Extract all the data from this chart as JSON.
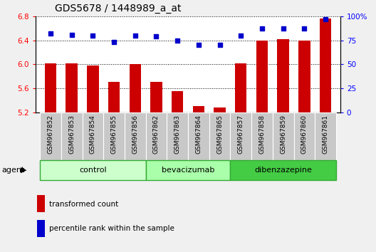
{
  "title": "GDS5678 / 1448989_a_at",
  "samples": [
    "GSM967852",
    "GSM967853",
    "GSM967854",
    "GSM967855",
    "GSM967856",
    "GSM967862",
    "GSM967863",
    "GSM967864",
    "GSM967865",
    "GSM967857",
    "GSM967858",
    "GSM967859",
    "GSM967860",
    "GSM967861"
  ],
  "bar_values": [
    6.02,
    6.02,
    5.98,
    5.7,
    6.0,
    5.7,
    5.55,
    5.3,
    5.28,
    6.02,
    6.4,
    6.42,
    6.4,
    6.77
  ],
  "percentile_values": [
    82,
    81,
    80,
    73,
    80,
    79,
    75,
    70,
    70,
    80,
    87,
    87,
    87,
    97
  ],
  "bar_color": "#cc0000",
  "dot_color": "#0000cc",
  "ylim_left": [
    5.2,
    6.8
  ],
  "ylim_right": [
    0,
    100
  ],
  "yticks_left": [
    5.2,
    5.6,
    6.0,
    6.4,
    6.8
  ],
  "yticks_right": [
    0,
    25,
    50,
    75,
    100
  ],
  "groups": [
    {
      "label": "control",
      "start": 0,
      "end": 5,
      "color": "#ccffcc"
    },
    {
      "label": "bevacizumab",
      "start": 5,
      "end": 9,
      "color": "#aaffaa"
    },
    {
      "label": "dibenzazepine",
      "start": 9,
      "end": 14,
      "color": "#44cc44"
    }
  ],
  "agent_label": "agent",
  "legend_bar_label": "transformed count",
  "legend_dot_label": "percentile rank within the sample",
  "bg_color": "#f0f0f0",
  "plot_bg_color": "#ffffff",
  "tick_label_bg": "#c8c8c8",
  "grid_color": "#000000",
  "title_fontsize": 10,
  "tick_fontsize": 7.5
}
